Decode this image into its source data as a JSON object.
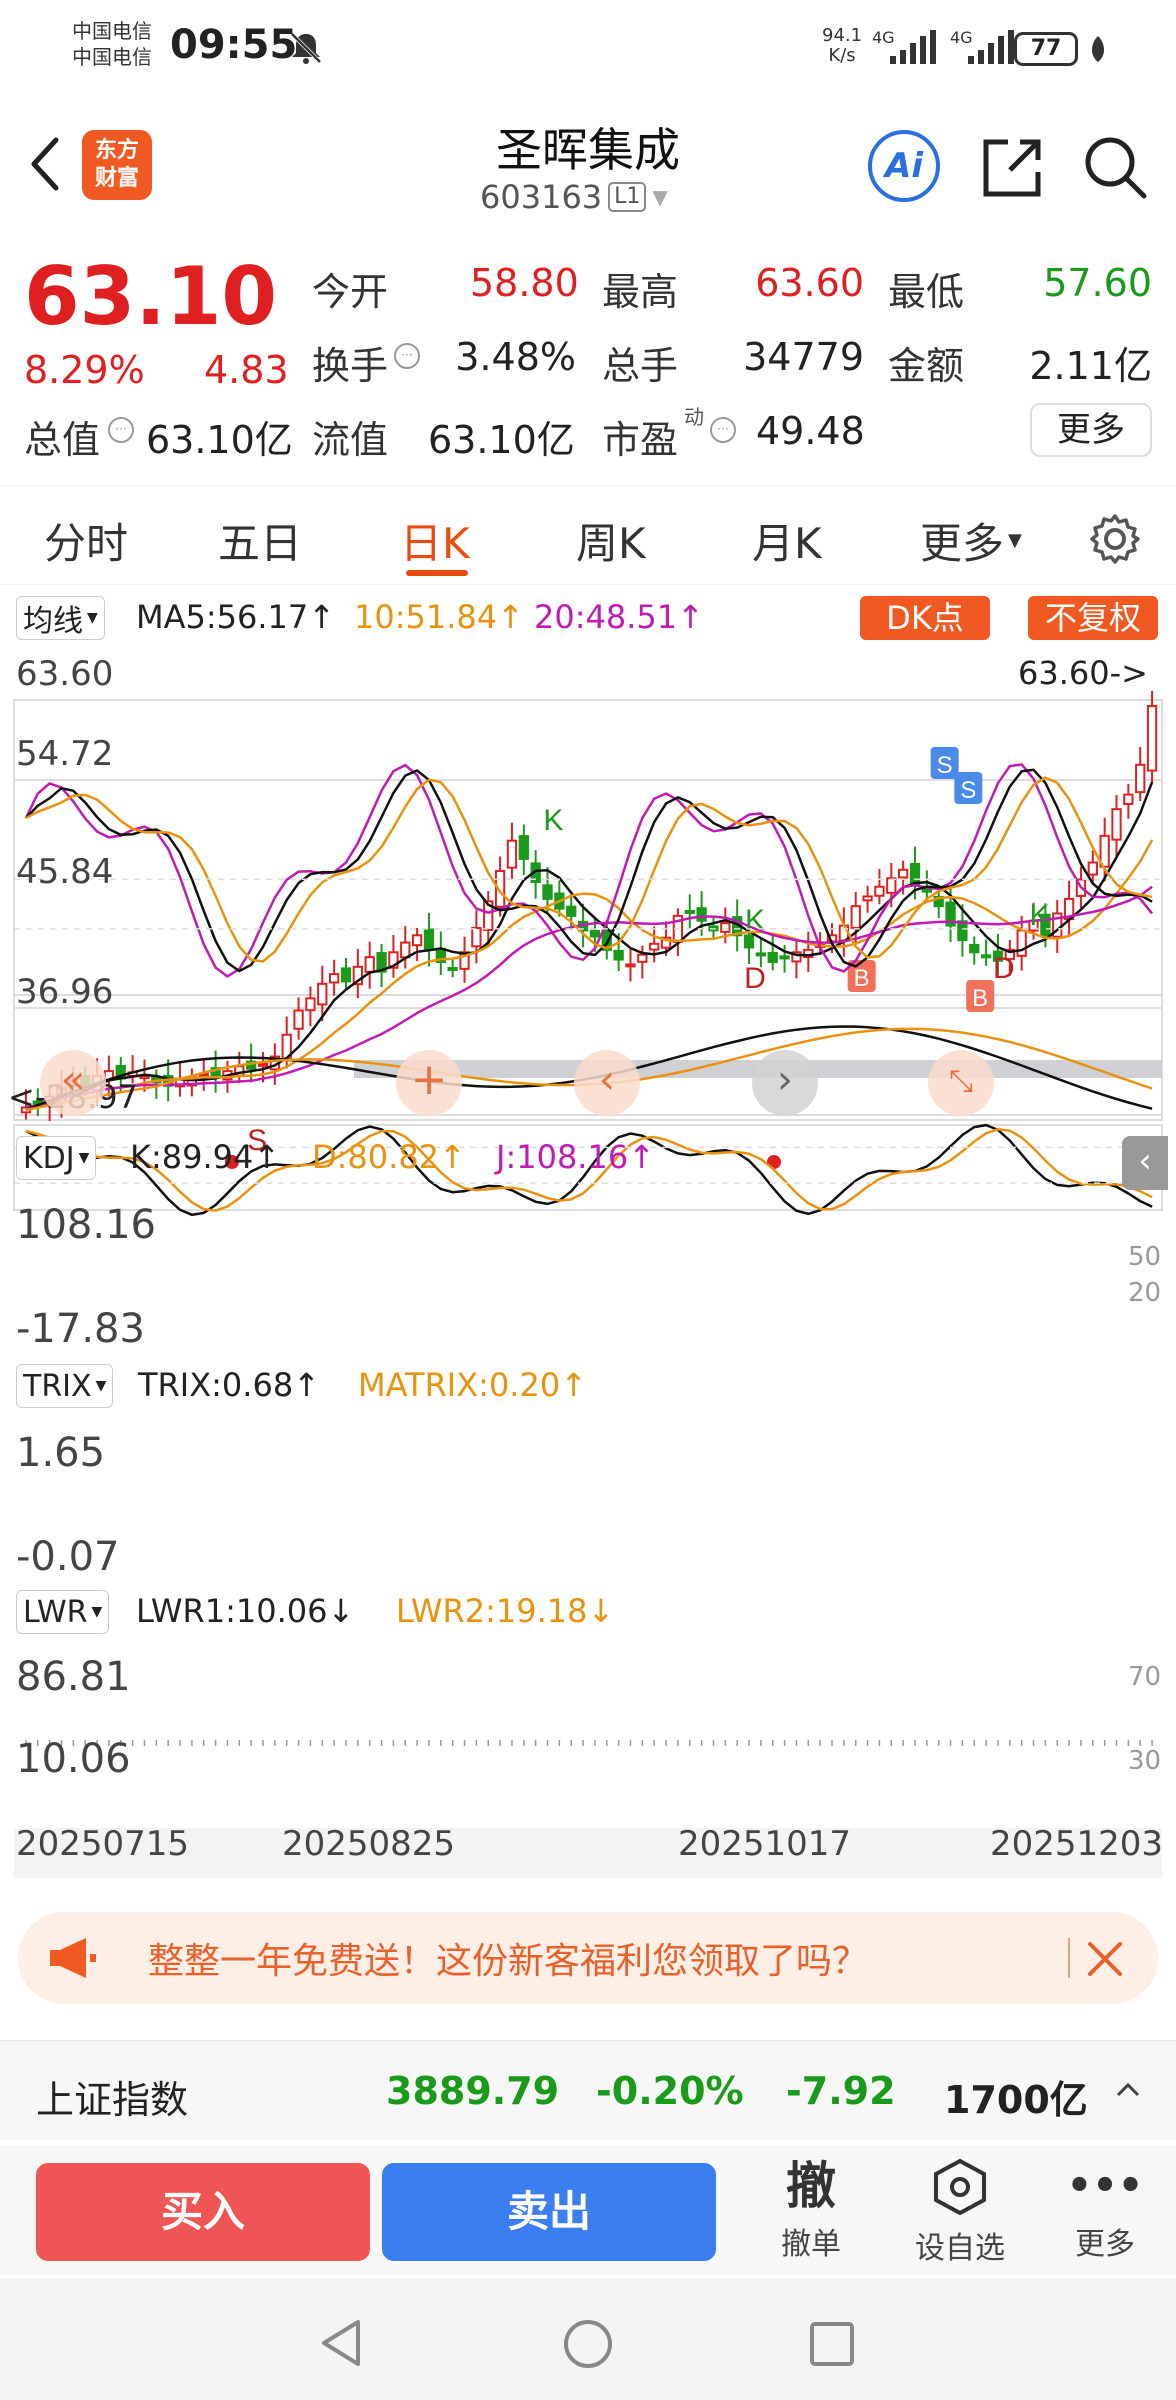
{
  "status_bar": {
    "carrier1": "中国电信",
    "carrier2": "中国电信",
    "time": "09:55",
    "net_speed_value": "94.1",
    "net_speed_unit": "K/s",
    "net1": "4G",
    "net2": "4G",
    "battery": "77"
  },
  "header": {
    "brand_line1": "东方",
    "brand_line2": "财富",
    "stock_name": "圣晖集成",
    "stock_code": "603163",
    "level": "L1",
    "ai_label": "Ai"
  },
  "quote": {
    "price": "63.10",
    "change_pct": "8.29%",
    "change_abs": "4.83",
    "open_label": "今开",
    "open_value": "58.80",
    "high_label": "最高",
    "high_value": "63.60",
    "low_label": "最低",
    "low_value": "57.60",
    "turnover_label": "换手",
    "turnover_value": "3.48%",
    "volume_label": "总手",
    "volume_value": "34779",
    "amount_label": "金额",
    "amount_value": "2.11亿",
    "mktcap_label": "总值",
    "mktcap_value": "63.10亿",
    "float_label": "流值",
    "float_value": "63.10亿",
    "pe_label": "市盈",
    "pe_sup": "动",
    "pe_value": "49.48",
    "more_button": "更多"
  },
  "tabs": [
    "分时",
    "五日",
    "日K",
    "周K",
    "月K",
    "更多"
  ],
  "active_tab": "日K",
  "ma_bar": {
    "selector": "均线",
    "ma5": "MA5:56.17↑",
    "ma10": "10:51.84↑",
    "ma20": "20:48.51↑",
    "dk_button": "DK点",
    "adjust_button": "不复权"
  },
  "kdj_bar": {
    "selector": "KDJ",
    "k": "K:89.94↑",
    "d": "D:80.82↑",
    "j": "J:108.16↑"
  },
  "trix_bar": {
    "selector": "TRIX",
    "trix": "TRIX:0.68↑",
    "matrix": "MATRIX:0.20↑"
  },
  "lwr_bar": {
    "selector": "LWR",
    "lwr1": "LWR1:10.06↓",
    "lwr2": "LWR2:19.18↓"
  },
  "colors": {
    "up": "#e02020",
    "down": "#1a9a1a",
    "accent": "#e84d10",
    "ma10": "#e8920e",
    "ma20": "#c21ab4",
    "buy": "#f05555",
    "sell": "#3a7ef0"
  },
  "chart_data": [
    {
      "type": "candlestick",
      "title": "日K",
      "y_ticks": [
        "63.60",
        "54.72",
        "45.84",
        "36.96",
        "28.97"
      ],
      "ylim": [
        28.97,
        63.6
      ],
      "high_marker": "63.60->",
      "low_marker": "<-28.97",
      "signal_labels": [
        "S",
        "S",
        "S",
        "K",
        "K",
        "K",
        "B",
        "B",
        "D",
        "D"
      ],
      "closes": [
        30.0,
        30.4,
        30.9,
        31.6,
        32.2,
        31.8,
        32.6,
        33.0,
        32.4,
        32.9,
        32.6,
        32.1,
        31.8,
        32.3,
        32.5,
        32.8,
        32.6,
        33.0,
        33.4,
        33.2,
        33.6,
        34.2,
        36.0,
        38.0,
        39.0,
        40.2,
        41.0,
        40.4,
        41.6,
        42.4,
        41.2,
        42.8,
        43.6,
        44.2,
        43.0,
        42.0,
        41.4,
        42.8,
        44.8,
        47.0,
        49.5,
        52.0,
        50.5,
        48.6,
        47.2,
        46.4,
        45.8,
        44.6,
        44.1,
        43.0,
        42.2,
        41.8,
        42.6,
        43.5,
        44.0,
        45.8,
        46.2,
        45.4,
        44.6,
        45.2,
        44.2,
        43.2,
        42.6,
        42.0,
        42.3,
        42.8,
        43.0,
        43.4,
        44.2,
        45.0,
        46.6,
        47.4,
        48.2,
        48.9,
        49.6,
        48.4,
        47.8,
        46.6,
        45.0,
        43.8,
        42.8,
        42.4,
        42.1,
        43.0,
        44.6,
        45.4,
        44.2,
        46.0,
        47.2,
        48.8,
        50.2,
        52.4,
        54.6,
        55.8,
        58.26,
        63.1
      ],
      "ma5_last": 56.17,
      "ma10_last": 51.84,
      "ma20_last": 48.51,
      "x_ticks": [
        "20250715",
        "20250825",
        "20251017",
        "20251203"
      ]
    },
    {
      "type": "line",
      "title": "KDJ",
      "y_ticks": [
        "108.16",
        "-17.83"
      ],
      "right_ticks": [
        "50",
        "20"
      ],
      "series": [
        {
          "name": "K",
          "last": 89.94
        },
        {
          "name": "D",
          "last": 80.82
        },
        {
          "name": "J",
          "last": 108.16
        }
      ]
    },
    {
      "type": "line",
      "title": "TRIX",
      "y_ticks": [
        "1.65",
        "-0.07"
      ],
      "series": [
        {
          "name": "TRIX",
          "last": 0.68
        },
        {
          "name": "MATRIX",
          "last": 0.2
        }
      ]
    },
    {
      "type": "line",
      "title": "LWR",
      "y_ticks": [
        "86.81",
        "10.06"
      ],
      "right_ticks": [
        "70",
        "30"
      ],
      "series": [
        {
          "name": "LWR1",
          "last": 10.06
        },
        {
          "name": "LWR2",
          "last": 19.18
        }
      ]
    }
  ],
  "banner": {
    "text": "整整一年免费送！这份新客福利您领取了吗？"
  },
  "index_bar": {
    "name": "上证指数",
    "value": "3889.79",
    "pct": "-0.20%",
    "change": "-7.92",
    "amount": "1700亿"
  },
  "trade_bar": {
    "buy": "买入",
    "sell": "卖出",
    "cancel_icon": "撤",
    "cancel": "撤单",
    "watch": "设自选",
    "more": "更多"
  }
}
